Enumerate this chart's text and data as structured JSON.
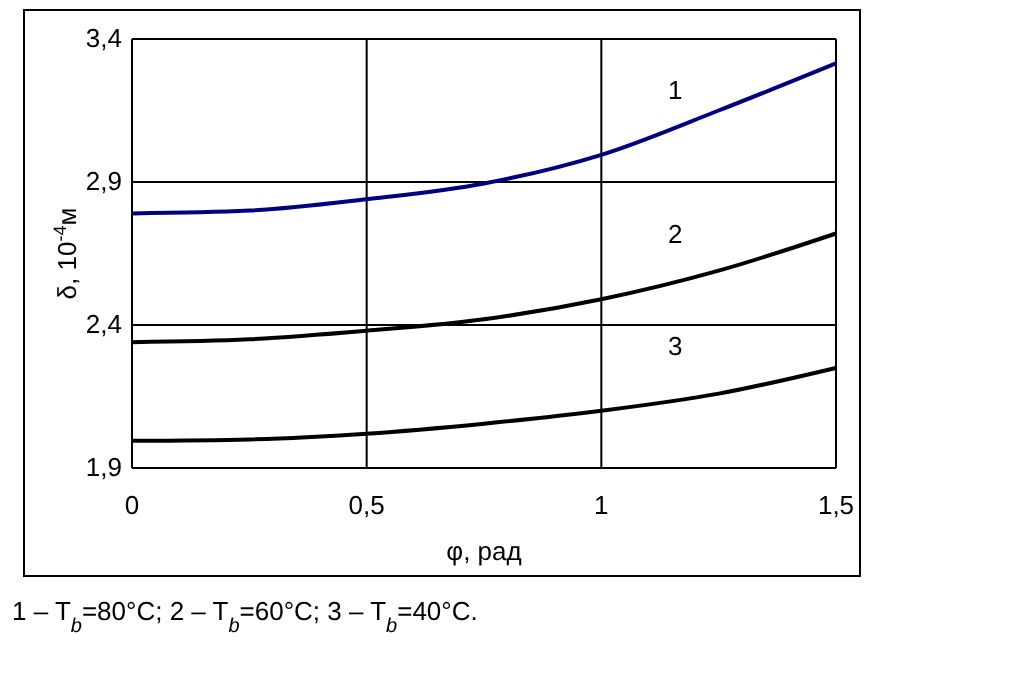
{
  "chart_data": {
    "type": "line",
    "ylabel": "δ, 10$^{-4}$м",
    "xlabel": "φ, рад",
    "x": [
      0,
      0.25,
      0.5,
      0.75,
      1,
      1.25,
      1.5
    ],
    "series": [
      {
        "name": "1",
        "color": "#000080",
        "values": [
          2.79,
          2.8,
          2.84,
          2.895,
          2.995,
          3.15,
          3.315
        ]
      },
      {
        "name": "2",
        "color": "#000000",
        "values": [
          2.34,
          2.35,
          2.38,
          2.42,
          2.49,
          2.59,
          2.72
        ]
      },
      {
        "name": "3",
        "color": "#000000",
        "values": [
          1.995,
          2.0,
          2.02,
          2.055,
          2.1,
          2.16,
          2.25
        ]
      }
    ],
    "xlim": [
      0,
      1.5
    ],
    "xticks": [
      0,
      {
        "value": 0.5,
        "label": "0,5"
      },
      1,
      {
        "value": 1.5,
        "label": "1,5"
      }
    ],
    "ylim": [
      1.9,
      3.4
    ],
    "yticks": [
      {
        "value": 1.9,
        "label": "1,9"
      },
      {
        "value": 2.4,
        "label": "2,4"
      },
      {
        "value": 2.9,
        "label": "2,9"
      },
      {
        "value": 3.4,
        "label": "3,4"
      }
    ],
    "grid": true,
    "marker": "none",
    "line_style": "solid",
    "annotations": [
      "1 – T$_{b}$=80°C;    2 – T$_{b}$=60°C;       3 – T$_{b}$=40°C."
    ]
  }
}
